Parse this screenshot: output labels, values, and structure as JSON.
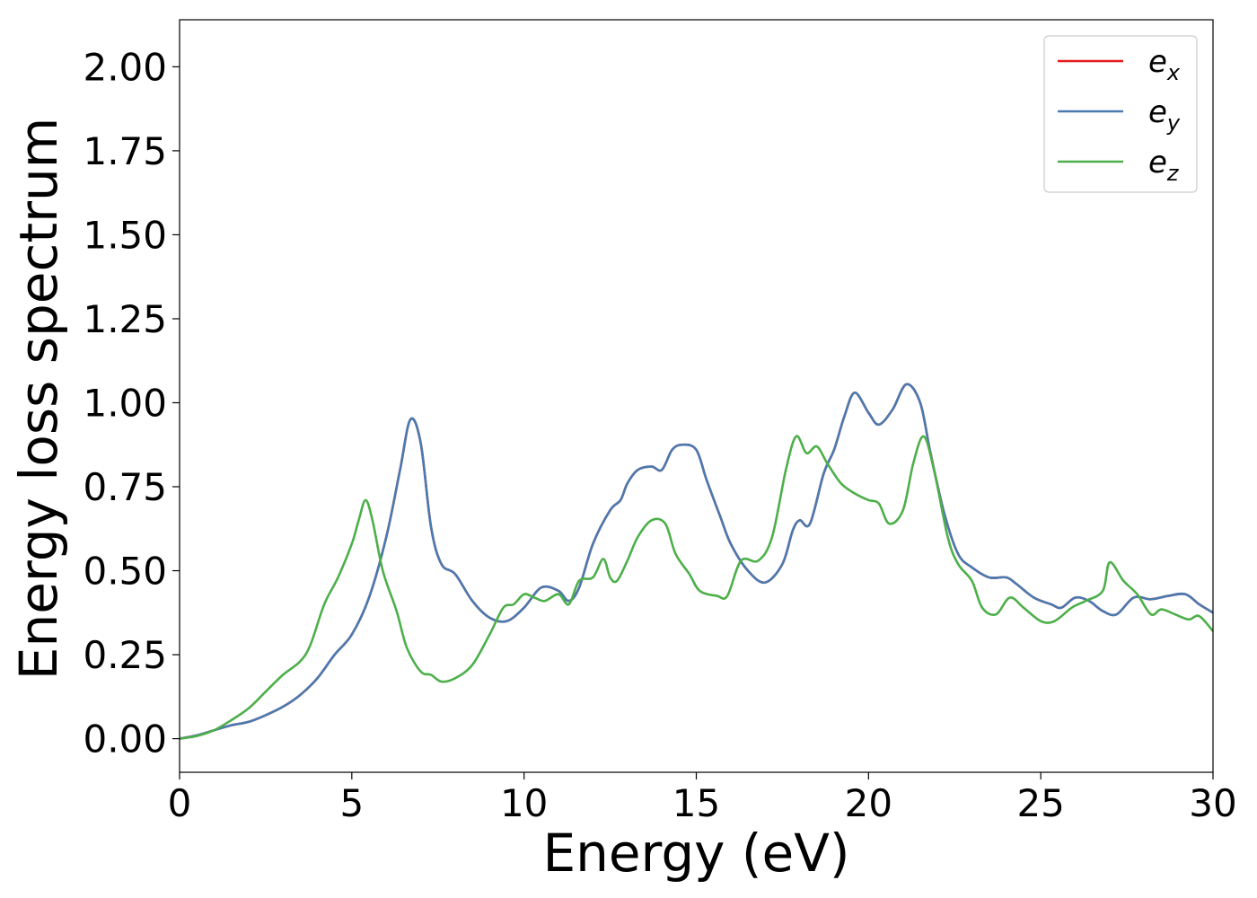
{
  "chart_data": {
    "type": "line",
    "xlabel": "Energy (eV)",
    "ylabel": "Energy loss spectrum",
    "xlim": [
      0,
      30
    ],
    "ylim": [
      -0.1,
      2.14
    ],
    "xticks": [
      0,
      5,
      10,
      15,
      20,
      25,
      30
    ],
    "xtick_labels": [
      "0",
      "5",
      "10",
      "15",
      "20",
      "25",
      "30"
    ],
    "yticks": [
      0,
      0.25,
      0.5,
      0.75,
      1.0,
      1.25,
      1.5,
      1.75,
      2.0
    ],
    "ytick_labels": [
      "0.00",
      "0.25",
      "0.50",
      "0.75",
      "1.00",
      "1.25",
      "1.50",
      "1.75",
      "2.00"
    ],
    "grid": false,
    "legend_position": "top-right",
    "series": [
      {
        "name": "e",
        "subscript": "x",
        "color": "#e41a1c",
        "points": [
          [
            0,
            0.0
          ],
          [
            0.5,
            0.01
          ],
          [
            1.0,
            0.025
          ],
          [
            1.5,
            0.04
          ],
          [
            2.0,
            0.05
          ],
          [
            2.5,
            0.07
          ],
          [
            3.0,
            0.095
          ],
          [
            3.5,
            0.13
          ],
          [
            4.0,
            0.18
          ],
          [
            4.5,
            0.25
          ],
          [
            5.0,
            0.31
          ],
          [
            5.5,
            0.42
          ],
          [
            6.0,
            0.6
          ],
          [
            6.4,
            0.8
          ],
          [
            6.7,
            0.95
          ],
          [
            7.0,
            0.88
          ],
          [
            7.3,
            0.63
          ],
          [
            7.6,
            0.52
          ],
          [
            8.0,
            0.49
          ],
          [
            8.5,
            0.41
          ],
          [
            9.0,
            0.36
          ],
          [
            9.5,
            0.35
          ],
          [
            10.0,
            0.39
          ],
          [
            10.5,
            0.45
          ],
          [
            11.0,
            0.44
          ],
          [
            11.3,
            0.41
          ],
          [
            11.6,
            0.45
          ],
          [
            12.0,
            0.58
          ],
          [
            12.5,
            0.68
          ],
          [
            12.8,
            0.71
          ],
          [
            13.0,
            0.76
          ],
          [
            13.3,
            0.8
          ],
          [
            13.7,
            0.81
          ],
          [
            14.0,
            0.8
          ],
          [
            14.3,
            0.86
          ],
          [
            14.6,
            0.875
          ],
          [
            15.0,
            0.86
          ],
          [
            15.3,
            0.77
          ],
          [
            15.7,
            0.66
          ],
          [
            16.0,
            0.58
          ],
          [
            16.5,
            0.5
          ],
          [
            17.0,
            0.465
          ],
          [
            17.5,
            0.52
          ],
          [
            17.8,
            0.62
          ],
          [
            18.0,
            0.65
          ],
          [
            18.3,
            0.64
          ],
          [
            18.7,
            0.79
          ],
          [
            19.0,
            0.86
          ],
          [
            19.3,
            0.96
          ],
          [
            19.6,
            1.03
          ],
          [
            20.0,
            0.97
          ],
          [
            20.3,
            0.935
          ],
          [
            20.7,
            0.98
          ],
          [
            21.1,
            1.055
          ],
          [
            21.5,
            1.0
          ],
          [
            21.8,
            0.85
          ],
          [
            22.2,
            0.67
          ],
          [
            22.6,
            0.55
          ],
          [
            23.0,
            0.51
          ],
          [
            23.5,
            0.48
          ],
          [
            24.0,
            0.48
          ],
          [
            24.3,
            0.46
          ],
          [
            24.8,
            0.42
          ],
          [
            25.3,
            0.4
          ],
          [
            25.6,
            0.39
          ],
          [
            26.0,
            0.42
          ],
          [
            26.4,
            0.41
          ],
          [
            26.8,
            0.38
          ],
          [
            27.2,
            0.37
          ],
          [
            27.7,
            0.42
          ],
          [
            28.2,
            0.415
          ],
          [
            28.7,
            0.425
          ],
          [
            29.2,
            0.43
          ],
          [
            29.6,
            0.4
          ],
          [
            30.0,
            0.375
          ]
        ]
      },
      {
        "name": "e",
        "subscript": "y",
        "color": "#4a7ab0",
        "points": [
          [
            0,
            0.0
          ],
          [
            0.5,
            0.01
          ],
          [
            1.0,
            0.025
          ],
          [
            1.5,
            0.04
          ],
          [
            2.0,
            0.05
          ],
          [
            2.5,
            0.07
          ],
          [
            3.0,
            0.095
          ],
          [
            3.5,
            0.13
          ],
          [
            4.0,
            0.18
          ],
          [
            4.5,
            0.25
          ],
          [
            5.0,
            0.31
          ],
          [
            5.5,
            0.42
          ],
          [
            6.0,
            0.6
          ],
          [
            6.4,
            0.8
          ],
          [
            6.7,
            0.95
          ],
          [
            7.0,
            0.88
          ],
          [
            7.3,
            0.63
          ],
          [
            7.6,
            0.52
          ],
          [
            8.0,
            0.49
          ],
          [
            8.5,
            0.41
          ],
          [
            9.0,
            0.36
          ],
          [
            9.5,
            0.35
          ],
          [
            10.0,
            0.39
          ],
          [
            10.5,
            0.45
          ],
          [
            11.0,
            0.44
          ],
          [
            11.3,
            0.41
          ],
          [
            11.6,
            0.45
          ],
          [
            12.0,
            0.58
          ],
          [
            12.5,
            0.68
          ],
          [
            12.8,
            0.71
          ],
          [
            13.0,
            0.76
          ],
          [
            13.3,
            0.8
          ],
          [
            13.7,
            0.81
          ],
          [
            14.0,
            0.8
          ],
          [
            14.3,
            0.86
          ],
          [
            14.6,
            0.875
          ],
          [
            15.0,
            0.86
          ],
          [
            15.3,
            0.77
          ],
          [
            15.7,
            0.66
          ],
          [
            16.0,
            0.58
          ],
          [
            16.5,
            0.5
          ],
          [
            17.0,
            0.465
          ],
          [
            17.5,
            0.52
          ],
          [
            17.8,
            0.62
          ],
          [
            18.0,
            0.65
          ],
          [
            18.3,
            0.64
          ],
          [
            18.7,
            0.79
          ],
          [
            19.0,
            0.86
          ],
          [
            19.3,
            0.96
          ],
          [
            19.6,
            1.03
          ],
          [
            20.0,
            0.97
          ],
          [
            20.3,
            0.935
          ],
          [
            20.7,
            0.98
          ],
          [
            21.1,
            1.055
          ],
          [
            21.5,
            1.0
          ],
          [
            21.8,
            0.85
          ],
          [
            22.2,
            0.67
          ],
          [
            22.6,
            0.55
          ],
          [
            23.0,
            0.51
          ],
          [
            23.5,
            0.48
          ],
          [
            24.0,
            0.48
          ],
          [
            24.3,
            0.46
          ],
          [
            24.8,
            0.42
          ],
          [
            25.3,
            0.4
          ],
          [
            25.6,
            0.39
          ],
          [
            26.0,
            0.42
          ],
          [
            26.4,
            0.41
          ],
          [
            26.8,
            0.38
          ],
          [
            27.2,
            0.37
          ],
          [
            27.7,
            0.42
          ],
          [
            28.2,
            0.415
          ],
          [
            28.7,
            0.425
          ],
          [
            29.2,
            0.43
          ],
          [
            29.6,
            0.4
          ],
          [
            30.0,
            0.375
          ]
        ]
      },
      {
        "name": "e",
        "subscript": "z",
        "color": "#4daf4a",
        "points": [
          [
            0,
            0.0
          ],
          [
            0.5,
            0.008
          ],
          [
            1.0,
            0.025
          ],
          [
            1.5,
            0.055
          ],
          [
            2.0,
            0.09
          ],
          [
            2.5,
            0.14
          ],
          [
            3.0,
            0.19
          ],
          [
            3.5,
            0.23
          ],
          [
            3.8,
            0.28
          ],
          [
            4.2,
            0.4
          ],
          [
            4.6,
            0.48
          ],
          [
            5.0,
            0.58
          ],
          [
            5.2,
            0.65
          ],
          [
            5.4,
            0.71
          ],
          [
            5.6,
            0.65
          ],
          [
            5.9,
            0.5
          ],
          [
            6.3,
            0.38
          ],
          [
            6.6,
            0.27
          ],
          [
            7.0,
            0.2
          ],
          [
            7.3,
            0.19
          ],
          [
            7.6,
            0.17
          ],
          [
            8.0,
            0.18
          ],
          [
            8.5,
            0.22
          ],
          [
            9.0,
            0.31
          ],
          [
            9.4,
            0.39
          ],
          [
            9.7,
            0.4
          ],
          [
            10.0,
            0.43
          ],
          [
            10.3,
            0.42
          ],
          [
            10.6,
            0.41
          ],
          [
            11.0,
            0.43
          ],
          [
            11.3,
            0.4
          ],
          [
            11.6,
            0.47
          ],
          [
            12.0,
            0.48
          ],
          [
            12.3,
            0.535
          ],
          [
            12.5,
            0.48
          ],
          [
            12.7,
            0.47
          ],
          [
            13.0,
            0.53
          ],
          [
            13.3,
            0.6
          ],
          [
            13.7,
            0.65
          ],
          [
            14.1,
            0.64
          ],
          [
            14.4,
            0.55
          ],
          [
            14.8,
            0.49
          ],
          [
            15.1,
            0.44
          ],
          [
            15.6,
            0.425
          ],
          [
            15.9,
            0.425
          ],
          [
            16.3,
            0.53
          ],
          [
            16.8,
            0.53
          ],
          [
            17.2,
            0.6
          ],
          [
            17.6,
            0.8
          ],
          [
            17.9,
            0.9
          ],
          [
            18.2,
            0.85
          ],
          [
            18.5,
            0.87
          ],
          [
            18.8,
            0.82
          ],
          [
            19.2,
            0.76
          ],
          [
            19.6,
            0.73
          ],
          [
            20.0,
            0.71
          ],
          [
            20.3,
            0.7
          ],
          [
            20.6,
            0.64
          ],
          [
            21.0,
            0.68
          ],
          [
            21.3,
            0.82
          ],
          [
            21.6,
            0.9
          ],
          [
            21.9,
            0.8
          ],
          [
            22.3,
            0.6
          ],
          [
            22.6,
            0.52
          ],
          [
            23.0,
            0.47
          ],
          [
            23.3,
            0.39
          ],
          [
            23.7,
            0.37
          ],
          [
            24.1,
            0.42
          ],
          [
            24.5,
            0.39
          ],
          [
            25.0,
            0.35
          ],
          [
            25.4,
            0.35
          ],
          [
            25.9,
            0.39
          ],
          [
            26.3,
            0.41
          ],
          [
            26.8,
            0.44
          ],
          [
            27.0,
            0.525
          ],
          [
            27.4,
            0.47
          ],
          [
            27.8,
            0.43
          ],
          [
            28.2,
            0.37
          ],
          [
            28.5,
            0.385
          ],
          [
            28.9,
            0.37
          ],
          [
            29.3,
            0.355
          ],
          [
            29.6,
            0.365
          ],
          [
            30.0,
            0.32
          ]
        ]
      }
    ]
  }
}
